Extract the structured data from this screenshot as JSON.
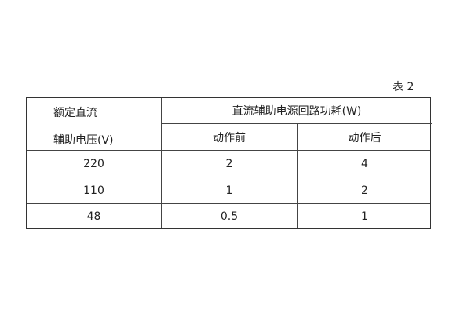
{
  "caption": "表 2",
  "table": {
    "header_col1_line1": "额定直流",
    "header_col1_line2": "辅助电压(V)",
    "header_group": "直流辅助电源回路功耗(W)",
    "subheaders": [
      "动作前",
      "动作后"
    ],
    "rows": [
      [
        "220",
        "2",
        "4"
      ],
      [
        "110",
        "1",
        "2"
      ],
      [
        "48",
        "0.5",
        "1"
      ]
    ]
  }
}
